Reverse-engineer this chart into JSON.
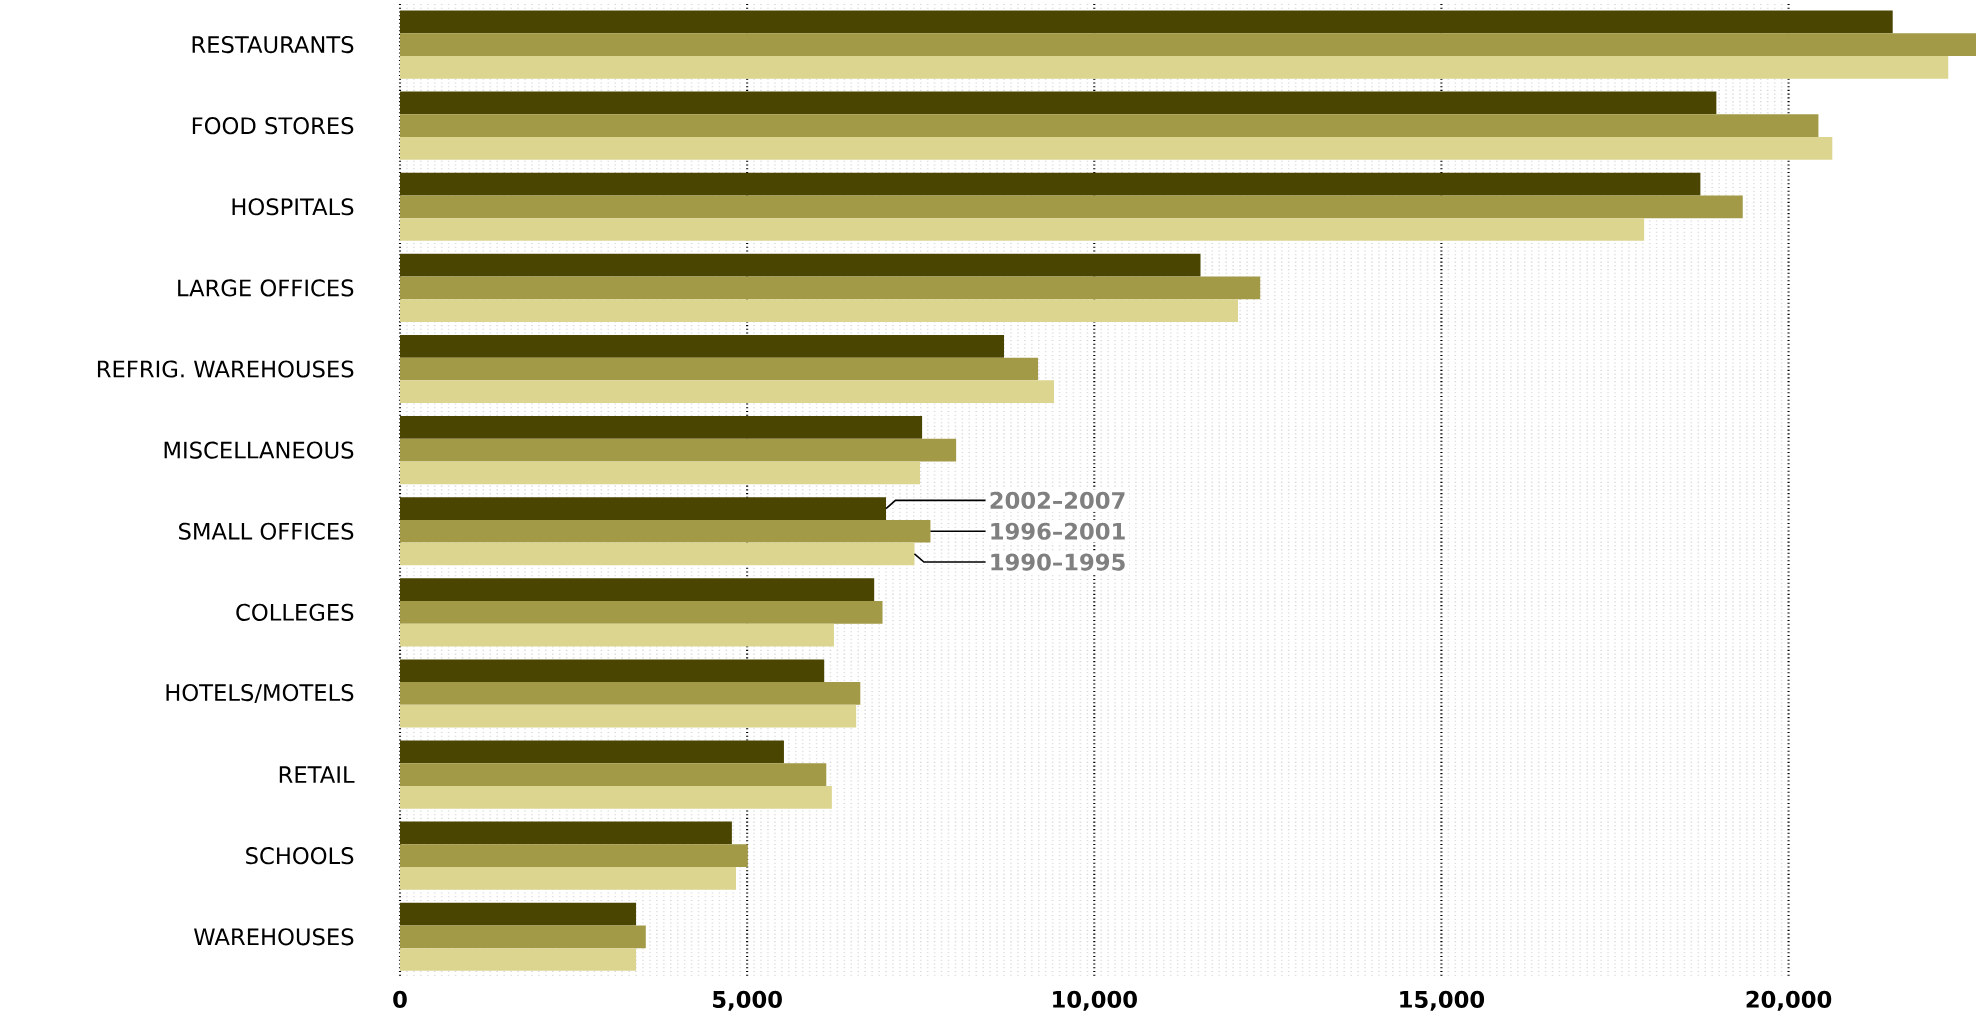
{
  "chart_data": {
    "type": "bar",
    "orientation": "horizontal",
    "categories": [
      "RESTAURANTS",
      "FOOD STORES",
      "HOSPITALS",
      "LARGE OFFICES",
      "REFRIG. WAREHOUSES",
      "MISCELLANEOUS",
      "SMALL OFFICES",
      "COLLEGES",
      "HOTELS/MOTELS",
      "RETAIL",
      "SCHOOLS",
      "WAREHOUSES"
    ],
    "series": [
      {
        "name": "2002–2007",
        "color": "#4a4500",
        "values": [
          21500,
          18960,
          18730,
          11530,
          8700,
          7520,
          7000,
          6830,
          6110,
          5530,
          4780,
          3400
        ]
      },
      {
        "name": "1996–2001",
        "color": "#a39a48",
        "values": [
          22700,
          20430,
          19340,
          12390,
          9190,
          8010,
          7640,
          6950,
          6630,
          6140,
          5010,
          3540
        ]
      },
      {
        "name": "1990–1995",
        "color": "#dbd58f",
        "values": [
          22300,
          20630,
          17920,
          12070,
          9420,
          7490,
          7410,
          6250,
          6570,
          6220,
          4840,
          3400
        ]
      }
    ],
    "xlim": [
      0,
      22700
    ],
    "xticks": [
      0,
      {
        "value": 5000,
        "label": "5,000"
      },
      {
        "value": 10000,
        "label": "10,000"
      },
      {
        "value": 15000,
        "label": "15,000"
      },
      {
        "value": 20000,
        "label": "20,000"
      }
    ],
    "grid": "x",
    "legend": false
  }
}
